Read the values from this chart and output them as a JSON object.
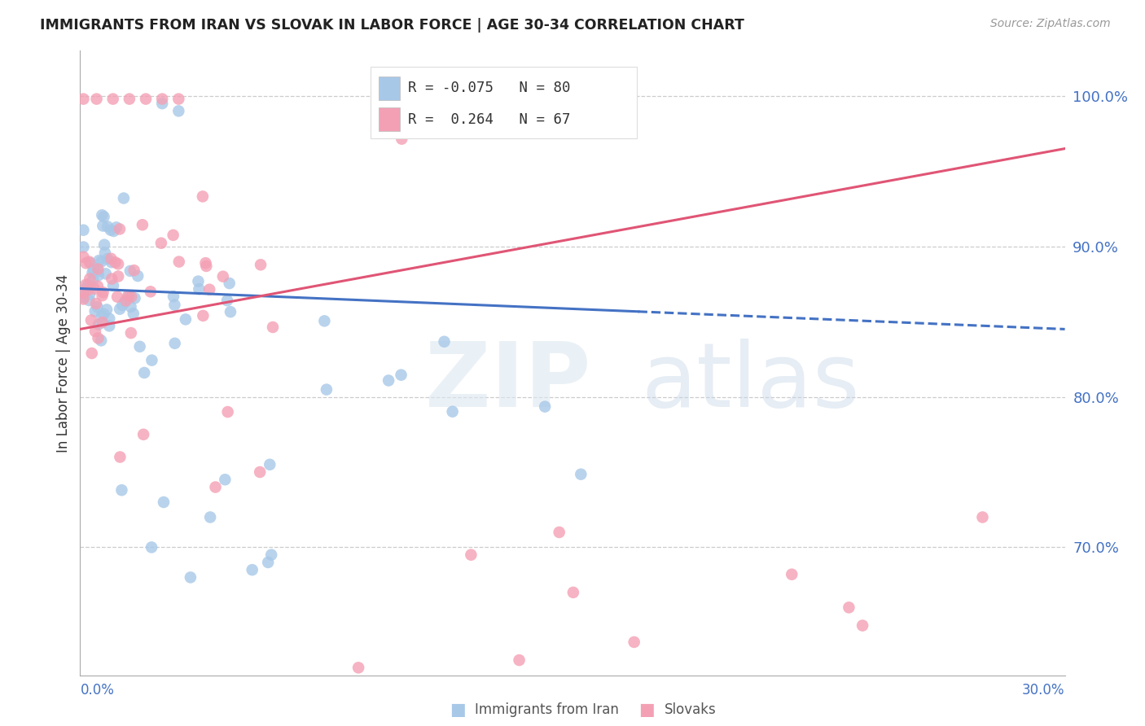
{
  "title": "IMMIGRANTS FROM IRAN VS SLOVAK IN LABOR FORCE | AGE 30-34 CORRELATION CHART",
  "source": "Source: ZipAtlas.com",
  "ylabel": "In Labor Force | Age 30-34",
  "xmin": 0.0,
  "xmax": 0.3,
  "ymin": 0.615,
  "ymax": 1.03,
  "iran_color": "#a8c8e8",
  "slovak_color": "#f4a0b4",
  "iran_line_color": "#4472c4",
  "slovak_line_color": "#e05575",
  "yticks": [
    1.0,
    0.9,
    0.8,
    0.7
  ],
  "iran_R": -0.075,
  "iran_N": 80,
  "slovak_R": 0.264,
  "slovak_N": 67,
  "iran_line_solid_end": 0.17,
  "iran_line_x0": 0.0,
  "iran_line_y0": 0.872,
  "iran_line_x1": 0.3,
  "iran_line_y1": 0.845,
  "slovak_line_x0": 0.0,
  "slovak_line_y0": 0.845,
  "slovak_line_x1": 0.3,
  "slovak_line_y1": 0.965
}
